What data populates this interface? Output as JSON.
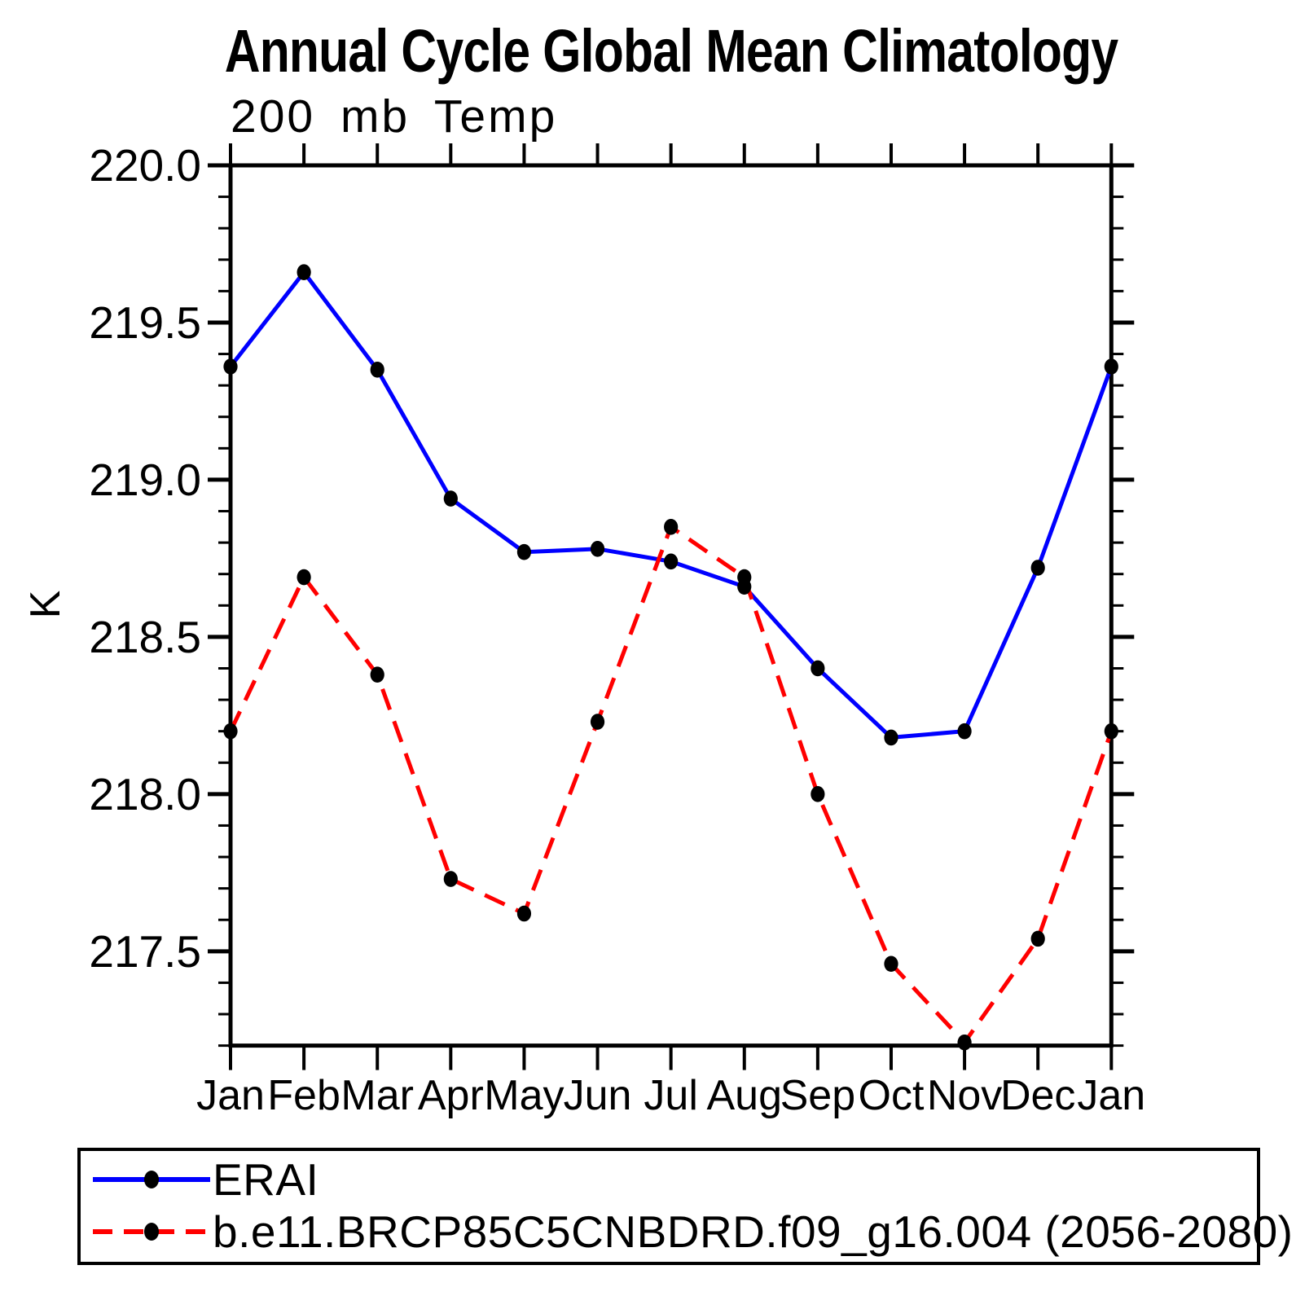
{
  "chart_data": {
    "type": "line",
    "title": "Annual Cycle Global Mean Climatology",
    "subtitle": "200 mb Temp",
    "ylabel": "K",
    "xlabel": "",
    "categories": [
      "Jan",
      "Feb",
      "Mar",
      "Apr",
      "May",
      "Jun",
      "Jul",
      "Aug",
      "Sep",
      "Oct",
      "Nov",
      "Dec",
      "Jan"
    ],
    "ylim": [
      217.2,
      220.0
    ],
    "y_tick_labels": [
      "220.0",
      "219.5",
      "219.0",
      "218.5",
      "218.0",
      "217.5"
    ],
    "y_major_step": 0.5,
    "y_minor_step": 0.1,
    "grid": false,
    "legend_position": "bottom-box",
    "frame_color": "#000000",
    "series": [
      {
        "name": "ERAI",
        "color": "#0000FF",
        "style": "solid",
        "marker": "circle",
        "marker_color": "#000000",
        "values": [
          219.36,
          219.66,
          219.35,
          218.94,
          218.77,
          218.78,
          218.74,
          218.66,
          218.4,
          218.18,
          218.2,
          218.72,
          219.36
        ]
      },
      {
        "name": "b.e11.BRCP85C5CNBDRD.f09_g16.004 (2056-2080)",
        "color": "#FF0000",
        "style": "dashed",
        "marker": "circle",
        "marker_color": "#000000",
        "values": [
          218.2,
          218.69,
          218.38,
          217.73,
          217.62,
          218.23,
          218.85,
          218.69,
          218.0,
          217.46,
          217.21,
          217.54,
          218.2
        ]
      }
    ]
  }
}
